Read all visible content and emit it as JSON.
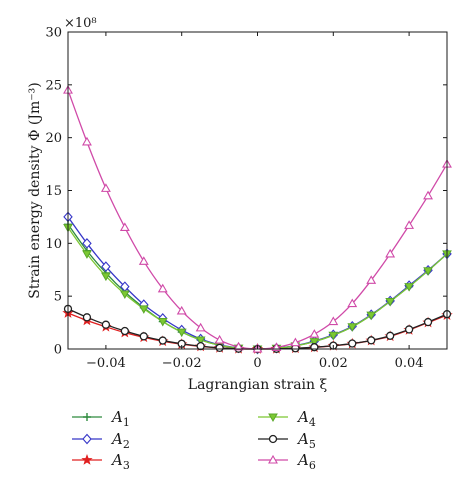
{
  "chart_data": {
    "type": "line",
    "xlabel": "Lagrangian strain ξ",
    "ylabel": "Strain energy density Φ (Jm⁻³)",
    "y_multiplier": "×10⁸",
    "xlim": [
      -0.05,
      0.05
    ],
    "ylim": [
      0,
      30
    ],
    "x_ticks": [
      -0.04,
      -0.02,
      0,
      0.02,
      0.04
    ],
    "x_tick_labels": [
      "−0.04",
      "−0.02",
      "0",
      "0.02",
      "0.04"
    ],
    "y_ticks": [
      0,
      5,
      10,
      15,
      20,
      25,
      30
    ],
    "y_tick_labels": [
      "0",
      "5",
      "10",
      "15",
      "20",
      "25",
      "30"
    ],
    "grid": false,
    "legend_position": "bottom",
    "x": [
      -0.05,
      -0.045,
      -0.04,
      -0.035,
      -0.03,
      -0.025,
      -0.02,
      -0.015,
      -0.01,
      -0.005,
      0,
      0.005,
      0.01,
      0.015,
      0.02,
      0.025,
      0.03,
      0.035,
      0.04,
      0.045,
      0.05
    ],
    "series": [
      {
        "name": "A",
        "subscript": "1",
        "color": "#2e8b3e",
        "marker": "plus",
        "values": [
          11.8,
          9.3,
          7.2,
          5.4,
          3.9,
          2.6,
          1.6,
          0.85,
          0.35,
          0.08,
          0,
          0.07,
          0.3,
          0.7,
          1.3,
          2.1,
          3.2,
          4.5,
          5.9,
          7.4,
          9.0
        ]
      },
      {
        "name": "A",
        "subscript": "2",
        "color": "#3636c8",
        "marker": "diamond",
        "values": [
          12.5,
          10.0,
          7.8,
          5.9,
          4.2,
          2.9,
          1.8,
          0.95,
          0.4,
          0.1,
          0,
          0.08,
          0.32,
          0.75,
          1.35,
          2.15,
          3.25,
          4.55,
          6.0,
          7.45,
          9.0
        ]
      },
      {
        "name": "A",
        "subscript": "3",
        "color": "#e02020",
        "marker": "star",
        "values": [
          3.4,
          2.7,
          2.1,
          1.55,
          1.1,
          0.73,
          0.45,
          0.24,
          0.1,
          0.02,
          0,
          0.015,
          0.06,
          0.15,
          0.3,
          0.5,
          0.8,
          1.2,
          1.8,
          2.5,
          3.2
        ]
      },
      {
        "name": "A",
        "subscript": "4",
        "color": "#7cc832",
        "marker": "triangle-down",
        "values": [
          11.5,
          9.0,
          6.9,
          5.2,
          3.8,
          2.6,
          1.6,
          0.85,
          0.35,
          0.08,
          0,
          0.07,
          0.3,
          0.7,
          1.3,
          2.1,
          3.2,
          4.5,
          5.9,
          7.4,
          9.0
        ]
      },
      {
        "name": "A",
        "subscript": "5",
        "color": "#222222",
        "marker": "circle",
        "values": [
          3.8,
          3.0,
          2.3,
          1.7,
          1.2,
          0.8,
          0.5,
          0.27,
          0.11,
          0.03,
          0,
          0.02,
          0.07,
          0.17,
          0.32,
          0.52,
          0.82,
          1.25,
          1.85,
          2.55,
          3.3
        ]
      },
      {
        "name": "A",
        "subscript": "6",
        "color": "#d04aa8",
        "marker": "triangle-up",
        "values": [
          24.5,
          19.6,
          15.2,
          11.5,
          8.3,
          5.7,
          3.6,
          2.0,
          0.85,
          0.2,
          0,
          0.15,
          0.6,
          1.4,
          2.6,
          4.3,
          6.5,
          9.0,
          11.7,
          14.5,
          17.5
        ]
      }
    ]
  }
}
